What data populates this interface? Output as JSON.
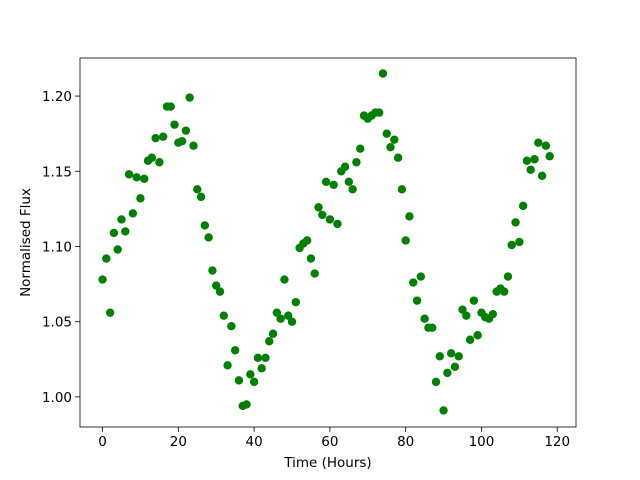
{
  "chart_data": {
    "type": "scatter",
    "xlabel": "Time (Hours)",
    "ylabel": "Normalised Flux",
    "color": "#008000",
    "xlim": [
      -5.95,
      124.95
    ],
    "ylim": [
      0.98,
      1.2253
    ],
    "xticks": [
      0,
      20,
      40,
      60,
      80,
      100,
      120
    ],
    "yticks": [
      {
        "value": 1.0,
        "label": "1.00"
      },
      {
        "value": 1.05,
        "label": "1.05"
      },
      {
        "value": 1.1,
        "label": "1.10"
      },
      {
        "value": 1.15,
        "label": "1.15"
      },
      {
        "value": 1.2,
        "label": "1.20"
      }
    ],
    "x": [
      0,
      1,
      2,
      3,
      4,
      5,
      6,
      7,
      8,
      9,
      10,
      11,
      12,
      13,
      14,
      15,
      16,
      17,
      18,
      19,
      20,
      21,
      22,
      23,
      24,
      25,
      26,
      27,
      28,
      29,
      30,
      31,
      32,
      33,
      34,
      35,
      36,
      37,
      38,
      39,
      40,
      41,
      42,
      43,
      44,
      45,
      46,
      47,
      48,
      49,
      50,
      51,
      52,
      53,
      54,
      55,
      56,
      57,
      58,
      59,
      60,
      61,
      62,
      63,
      64,
      65,
      66,
      67,
      68,
      69,
      70,
      71,
      72,
      73,
      74,
      75,
      76,
      77,
      78,
      79,
      80,
      81,
      82,
      83,
      84,
      85,
      86,
      87,
      88,
      89,
      90,
      91,
      92,
      93,
      94,
      95,
      96,
      97,
      98,
      99,
      100,
      101,
      102,
      103,
      104,
      105,
      106,
      107,
      108,
      109,
      110,
      111,
      112,
      113,
      114,
      115,
      116,
      117,
      118
    ],
    "values": [
      1.078,
      1.092,
      1.056,
      1.109,
      1.098,
      1.118,
      1.11,
      1.148,
      1.122,
      1.146,
      1.132,
      1.145,
      1.157,
      1.159,
      1.172,
      1.156,
      1.173,
      1.193,
      1.193,
      1.181,
      1.169,
      1.17,
      1.177,
      1.199,
      1.167,
      1.138,
      1.133,
      1.114,
      1.106,
      1.084,
      1.074,
      1.07,
      1.054,
      1.021,
      1.047,
      1.031,
      1.011,
      0.994,
      0.995,
      1.015,
      1.01,
      1.026,
      1.019,
      1.026,
      1.037,
      1.042,
      1.056,
      1.052,
      1.078,
      1.054,
      1.05,
      1.063,
      1.099,
      1.102,
      1.104,
      1.092,
      1.082,
      1.126,
      1.121,
      1.143,
      1.118,
      1.141,
      1.115,
      1.15,
      1.153,
      1.143,
      1.138,
      1.156,
      1.165,
      1.187,
      1.185,
      1.187,
      1.189,
      1.189,
      1.215,
      1.175,
      1.166,
      1.171,
      1.159,
      1.138,
      1.104,
      1.12,
      1.076,
      1.064,
      1.08,
      1.052,
      1.046,
      1.046,
      1.01,
      1.027,
      0.991,
      1.016,
      1.029,
      1.02,
      1.027,
      1.058,
      1.054,
      1.038,
      1.064,
      1.041,
      1.056,
      1.053,
      1.052,
      1.055,
      1.07,
      1.072,
      1.07,
      1.08,
      1.101,
      1.116,
      1.103,
      1.127,
      1.157,
      1.151,
      1.158,
      1.169,
      1.147,
      1.167,
      1.16
    ]
  }
}
